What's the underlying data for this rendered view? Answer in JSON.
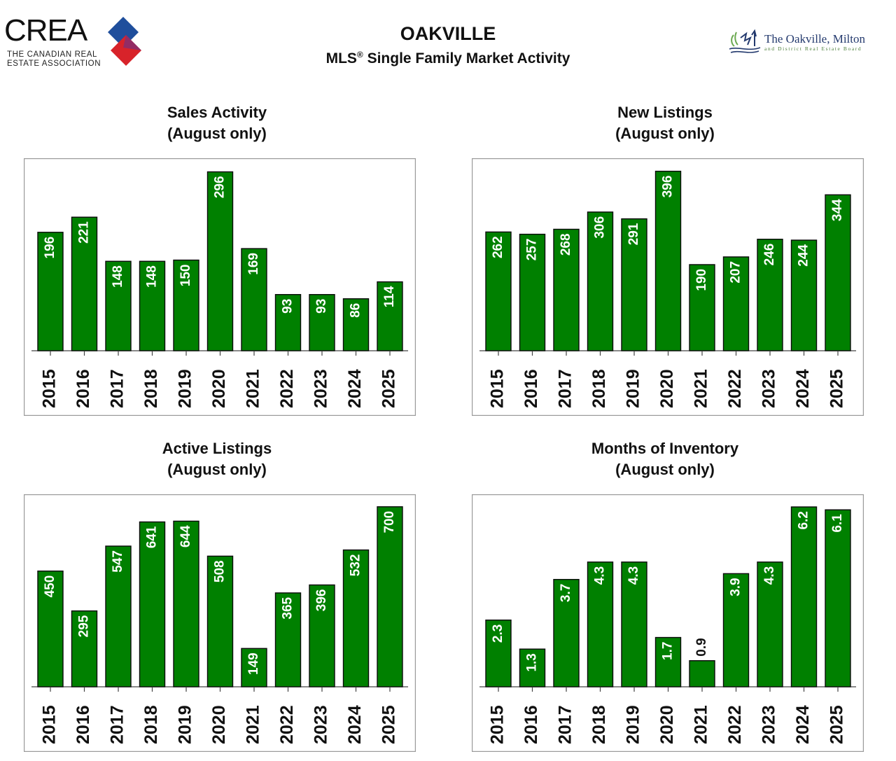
{
  "header": {
    "title": "OAKVILLE",
    "subtitle_prefix": "MLS",
    "subtitle_reg": "®",
    "subtitle_suffix": " Single Family Market Activity",
    "crea_word": "CREA",
    "crea_line1": "THE CANADIAN REAL",
    "crea_line2": "ESTATE ASSOCIATION",
    "board_name": "The Oakville, Milton",
    "board_sub": "and District Real Estate Board"
  },
  "colors": {
    "bar": "#008000",
    "crea_blue": "#1f4e9c",
    "crea_red": "#d8232a",
    "label_on_bar": "#ffffff",
    "label_above_bar": "#111111"
  },
  "chart_data": [
    {
      "type": "bar",
      "title": "Sales Activity",
      "subtitle": "(August only)",
      "categories": [
        "2015",
        "2016",
        "2017",
        "2018",
        "2019",
        "2020",
        "2021",
        "2022",
        "2023",
        "2024",
        "2025"
      ],
      "values": [
        196,
        221,
        148,
        148,
        150,
        296,
        169,
        93,
        93,
        86,
        114
      ],
      "labels": [
        "196",
        "221",
        "148",
        "148",
        "150",
        "296",
        "169",
        "93",
        "93",
        "86",
        "114"
      ],
      "ylim": [
        0,
        300
      ],
      "grid": false,
      "legend": "none"
    },
    {
      "type": "bar",
      "title": "New Listings",
      "subtitle": "(August only)",
      "categories": [
        "2015",
        "2016",
        "2017",
        "2018",
        "2019",
        "2020",
        "2021",
        "2022",
        "2023",
        "2024",
        "2025"
      ],
      "values": [
        262,
        257,
        268,
        306,
        291,
        396,
        190,
        207,
        246,
        244,
        344
      ],
      "labels": [
        "262",
        "257",
        "268",
        "306",
        "291",
        "396",
        "190",
        "207",
        "246",
        "244",
        "344"
      ],
      "ylim": [
        0,
        400
      ],
      "grid": false,
      "legend": "none"
    },
    {
      "type": "bar",
      "title": "Active Listings",
      "subtitle": "(August only)",
      "categories": [
        "2015",
        "2016",
        "2017",
        "2018",
        "2019",
        "2020",
        "2021",
        "2022",
        "2023",
        "2024",
        "2025"
      ],
      "values": [
        450,
        295,
        547,
        641,
        644,
        508,
        149,
        365,
        396,
        532,
        700
      ],
      "labels": [
        "450",
        "295",
        "547",
        "641",
        "644",
        "508",
        "149",
        "365",
        "396",
        "532",
        "700"
      ],
      "ylim": [
        0,
        705
      ],
      "grid": false,
      "legend": "none"
    },
    {
      "type": "bar",
      "title": "Months of Inventory",
      "subtitle": "(August only)",
      "categories": [
        "2015",
        "2016",
        "2017",
        "2018",
        "2019",
        "2020",
        "2021",
        "2022",
        "2023",
        "2024",
        "2025"
      ],
      "values": [
        2.3,
        1.3,
        3.7,
        4.3,
        4.3,
        1.7,
        0.9,
        3.9,
        4.3,
        6.2,
        6.1
      ],
      "labels": [
        "2.3",
        "1.3",
        "3.7",
        "4.3",
        "4.3",
        "1.7",
        "0.9",
        "3.9",
        "4.3",
        "6.2",
        "6.1"
      ],
      "ylim": [
        0,
        6.25
      ],
      "grid": false,
      "legend": "none"
    }
  ]
}
